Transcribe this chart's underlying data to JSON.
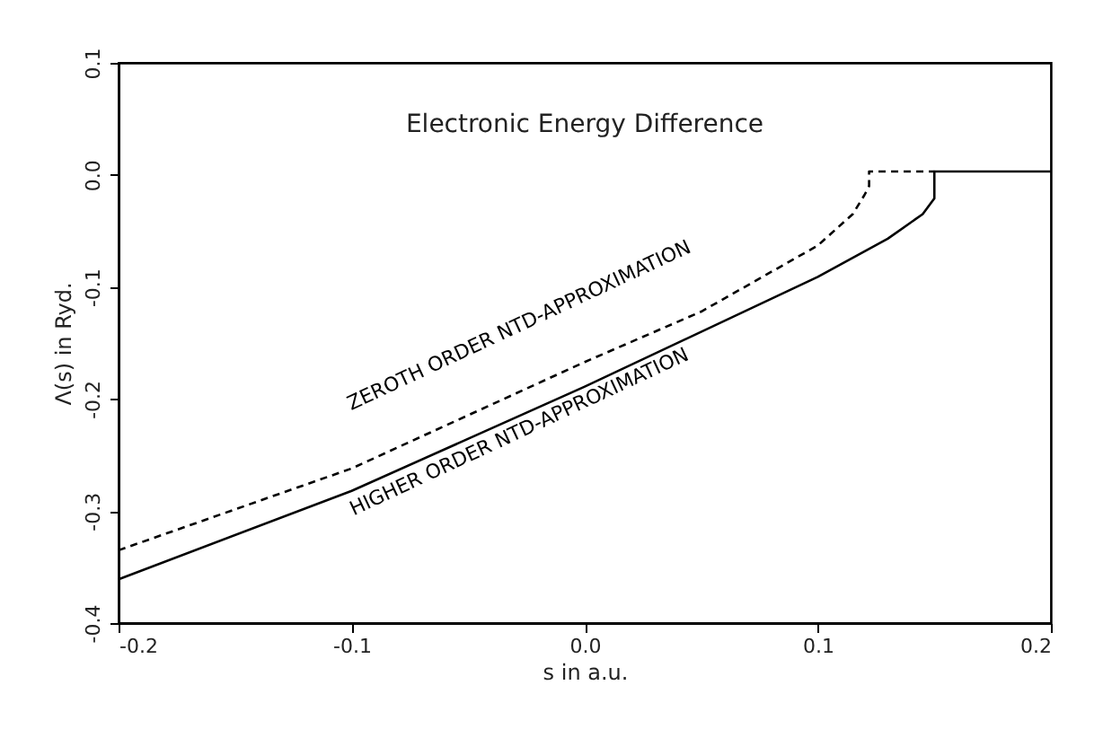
{
  "chart_data": {
    "type": "line",
    "title": "Electronic Energy Difference",
    "xlabel": "s in a.u.",
    "ylabel": "Λ(s) in Ryd.",
    "xlim": [
      -0.2,
      0.2
    ],
    "ylim": [
      -0.4,
      0.1
    ],
    "xticks": [
      -0.2,
      -0.1,
      {
        "value": 0,
        "label": "0.0"
      },
      0.1,
      0.2
    ],
    "yticks": [
      -0.4,
      -0.3,
      -0.2,
      -0.1,
      {
        "value": 0,
        "label": "0.0"
      },
      0.1
    ],
    "grid": false,
    "marker": "none",
    "series": [
      {
        "name": "ZEROTH ORDER NTD-APPROXIMATION",
        "color": "#000000",
        "line_style": "dashed",
        "x": [
          -0.2,
          -0.1,
          0.0,
          0.05,
          0.1,
          0.115,
          0.12,
          0.122,
          0.122,
          0.15
        ],
        "values": [
          -0.335,
          -0.262,
          -0.167,
          -0.122,
          -0.063,
          -0.035,
          -0.018,
          -0.01,
          0.003,
          0.003
        ]
      },
      {
        "name": "HIGHER ORDER NTD-APPROXIMATION",
        "color": "#000000",
        "line_style": "solid",
        "x": [
          -0.2,
          -0.1,
          0.0,
          0.1,
          0.13,
          0.145,
          0.15,
          0.15,
          0.2
        ],
        "values": [
          -0.361,
          -0.282,
          -0.189,
          -0.091,
          -0.057,
          -0.035,
          -0.021,
          0.003,
          0.003
        ]
      }
    ]
  }
}
